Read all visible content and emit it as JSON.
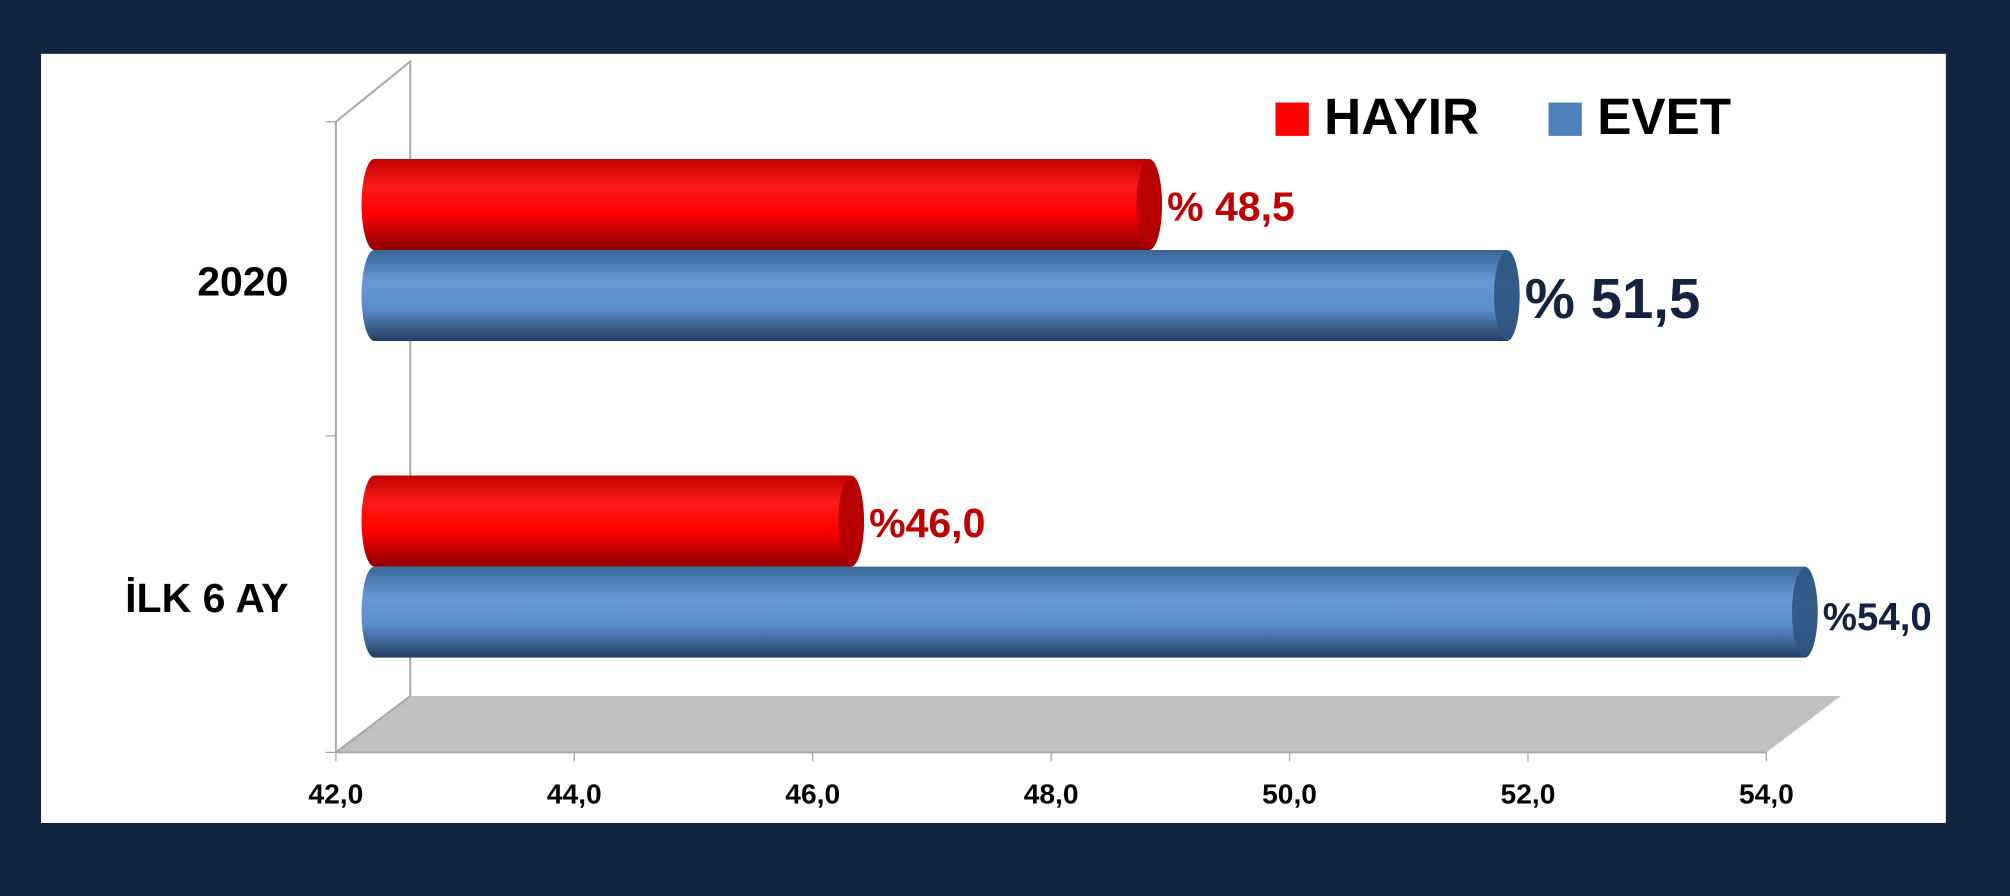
{
  "chart_data": {
    "type": "bar",
    "orientation": "horizontal",
    "categories": [
      "2020",
      "İLK 6 AY"
    ],
    "series": [
      {
        "name": "HAYIR",
        "color": "#ff0000",
        "values": [
          48.5,
          46.0
        ],
        "value_labels": [
          "% 48,5",
          "%46,0"
        ]
      },
      {
        "name": "EVET",
        "color": "#4f81bd",
        "values": [
          51.5,
          54.0
        ],
        "value_labels": [
          "% 51,5",
          "%54,0"
        ]
      }
    ],
    "xlim": [
      42,
      54
    ],
    "xticks": [
      {
        "value": 42,
        "label": "42,0"
      },
      {
        "value": 44,
        "label": "44,0"
      },
      {
        "value": 46,
        "label": "46,0"
      },
      {
        "value": 48,
        "label": "48,0"
      },
      {
        "value": 50,
        "label": "50,0"
      },
      {
        "value": 52,
        "label": "52,0"
      },
      {
        "value": 54,
        "label": "54,0"
      }
    ],
    "legend": "top-right"
  }
}
